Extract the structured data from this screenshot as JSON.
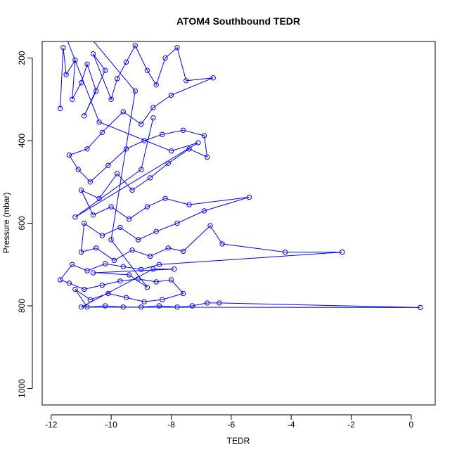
{
  "chart_data": {
    "type": "scatter",
    "title": "ATOM4 Southbound TEDR",
    "xlabel": "TEDR",
    "ylabel": "Pressure (mbar)",
    "xlim": [
      -12.3,
      0.8
    ],
    "ylim": [
      1040,
      160
    ],
    "y_reversed": true,
    "x_ticks": [
      -12,
      -10,
      -8,
      -6,
      -4,
      -2,
      0
    ],
    "x_tick_labels": [
      "-12",
      "-10",
      "-8",
      "-6",
      "-4",
      "-2",
      "0"
    ],
    "y_ticks": [
      200,
      400,
      600,
      800,
      1000
    ],
    "y_tick_labels": [
      "200",
      "400",
      "600",
      "800",
      "1000"
    ],
    "grid": false,
    "series_color": "#0000ff",
    "series": [
      {
        "style": "line+open-circle",
        "points": [
          [
            -11.7,
            322
          ],
          [
            -11.6,
            175
          ],
          [
            -11.5,
            240
          ],
          [
            -11.2,
            205
          ],
          [
            -11.3,
            300
          ],
          [
            -11.0,
            260
          ],
          [
            -10.8,
            215
          ],
          [
            -10.5,
            280
          ],
          [
            -10.9,
            340
          ],
          [
            -10.2,
            230
          ],
          [
            -10.6,
            190
          ],
          [
            -10.0,
            300
          ],
          [
            -9.8,
            250
          ],
          [
            -9.5,
            210
          ],
          [
            -9.2,
            170
          ],
          [
            -8.8,
            230
          ],
          [
            -8.5,
            265
          ],
          [
            -8.2,
            200
          ],
          [
            -7.8,
            175
          ],
          [
            -7.5,
            255
          ],
          [
            -6.6,
            248
          ],
          [
            -8.0,
            290
          ],
          [
            -8.6,
            320
          ],
          [
            -9.0,
            360
          ],
          [
            -9.6,
            330
          ],
          [
            -10.3,
            380
          ],
          [
            -10.8,
            420
          ],
          [
            -11.4,
            435
          ],
          [
            -11.1,
            470
          ],
          [
            -10.7,
            500
          ],
          [
            -10.1,
            460
          ],
          [
            -9.5,
            420
          ],
          [
            -8.9,
            400
          ],
          [
            -8.3,
            385
          ],
          [
            -7.6,
            375
          ],
          [
            -6.9,
            388
          ],
          [
            -6.8,
            440
          ],
          [
            -7.4,
            420
          ],
          [
            -8.1,
            455
          ],
          [
            -8.7,
            490
          ],
          [
            -9.3,
            520
          ],
          [
            -9.8,
            480
          ],
          [
            -10.4,
            540
          ],
          [
            -11.0,
            520
          ],
          [
            -10.6,
            580
          ],
          [
            -10.0,
            560
          ],
          [
            -9.4,
            590
          ],
          [
            -8.8,
            560
          ],
          [
            -8.2,
            540
          ],
          [
            -7.4,
            555
          ],
          [
            -5.4,
            537
          ],
          [
            -6.9,
            570
          ],
          [
            -7.8,
            600
          ],
          [
            -8.5,
            620
          ],
          [
            -9.1,
            640
          ],
          [
            -9.7,
            610
          ],
          [
            -10.3,
            630
          ],
          [
            -10.9,
            600
          ],
          [
            -11.0,
            670
          ],
          [
            -10.5,
            660
          ],
          [
            -9.9,
            690
          ],
          [
            -9.3,
            665
          ],
          [
            -8.7,
            680
          ],
          [
            -8.1,
            660
          ],
          [
            -7.6,
            668
          ],
          [
            -6.7,
            606
          ],
          [
            -6.3,
            650
          ],
          [
            -4.2,
            670
          ],
          [
            -2.3,
            670
          ],
          [
            -8.4,
            700
          ],
          [
            -9.0,
            712
          ],
          [
            -9.6,
            705
          ],
          [
            -10.2,
            698
          ],
          [
            -10.8,
            715
          ],
          [
            -11.3,
            700
          ],
          [
            -11.7,
            737
          ],
          [
            -11.4,
            745
          ],
          [
            -10.9,
            760
          ],
          [
            -10.3,
            750
          ],
          [
            -9.7,
            740
          ],
          [
            -9.1,
            735
          ],
          [
            -8.5,
            742
          ],
          [
            -8.0,
            737
          ],
          [
            -7.6,
            770
          ],
          [
            -8.3,
            785
          ],
          [
            -8.9,
            790
          ],
          [
            -9.5,
            780
          ],
          [
            -10.1,
            770
          ],
          [
            -10.7,
            785
          ],
          [
            -11.2,
            760
          ],
          [
            -10.8,
            803
          ],
          [
            -10.2,
            800
          ],
          [
            -9.6,
            803
          ],
          [
            -9.0,
            803
          ],
          [
            -8.4,
            800
          ],
          [
            -7.8,
            803
          ],
          [
            -7.3,
            800
          ],
          [
            -6.8,
            793
          ],
          [
            -6.4,
            793
          ],
          [
            0.3,
            804
          ],
          [
            -11.0,
            803
          ],
          [
            -8.6,
            711
          ],
          [
            -7.9,
            711
          ],
          [
            -10.6,
            720
          ],
          [
            -9.4,
            725
          ],
          [
            -8.8,
            755
          ],
          [
            -10.0,
            640
          ],
          [
            -9.2,
            280
          ],
          [
            -10.7,
            150
          ],
          [
            -7.2,
            150
          ],
          [
            -9.8,
            150
          ],
          [
            -8.3,
            150
          ],
          [
            -11.5,
            150
          ],
          [
            -10.4,
            355
          ],
          [
            -8.0,
            425
          ],
          [
            -7.1,
            405
          ],
          [
            -11.2,
            585
          ],
          [
            -9.0,
            470
          ],
          [
            -8.6,
            345
          ]
        ]
      }
    ]
  }
}
